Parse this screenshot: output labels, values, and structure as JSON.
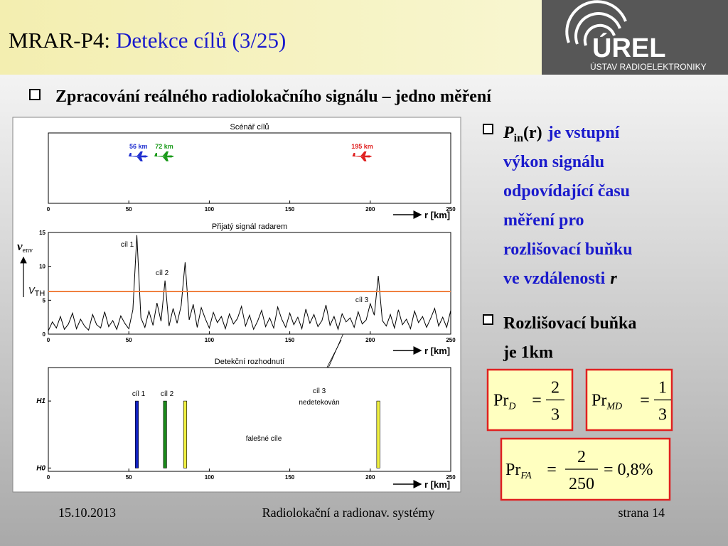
{
  "header": {
    "title_prefix": "MRAR-P4:",
    "title": "Detekce cílů (3/25)",
    "logo": "ÚREL",
    "logo_sub": "ÚSTAV RADIOELEKTRONIKY"
  },
  "heading": "Zpracování reálného radiolokačního signálu – jedno měření",
  "chart_data": [
    {
      "type": "markers",
      "title": "Scénář cílů",
      "x": [
        56,
        72,
        195
      ],
      "labels": [
        "56 km",
        "72 km",
        "195 km"
      ],
      "colors": [
        "#1f2fd0",
        "#1a9a1a",
        "#e02020"
      ],
      "xlim": [
        0,
        250
      ],
      "xticks": [
        0,
        50,
        100,
        150,
        200,
        250
      ],
      "xlabel": "r [km]"
    },
    {
      "type": "line",
      "title": "Přijatý signál radarem",
      "color": "#000000",
      "x": [
        0,
        2.5,
        5,
        7.5,
        10,
        12.5,
        15,
        17.5,
        20,
        22.5,
        25,
        27.5,
        30,
        32.5,
        35,
        37.5,
        40,
        42.5,
        45,
        47.5,
        50,
        52.5,
        55,
        57.5,
        60,
        62.5,
        65,
        67.5,
        70,
        72.5,
        75,
        77.5,
        80,
        82.5,
        85,
        87.5,
        90,
        92.5,
        95,
        97.5,
        100,
        102.5,
        105,
        107.5,
        110,
        112.5,
        115,
        117.5,
        120,
        122.5,
        125,
        127.5,
        130,
        132.5,
        135,
        137.5,
        140,
        142.5,
        145,
        147.5,
        150,
        152.5,
        155,
        157.5,
        160,
        162.5,
        165,
        167.5,
        170,
        172.5,
        175,
        177.5,
        180,
        182.5,
        185,
        187.5,
        190,
        192.5,
        195,
        197.5,
        200,
        202.5,
        205,
        207.5,
        210,
        212.5,
        215,
        217.5,
        220,
        222.5,
        225,
        227.5,
        230,
        232.5,
        235,
        237.5,
        240,
        242.5,
        245,
        247.5,
        250
      ],
      "values": [
        0.5,
        1.8,
        0.9,
        2.6,
        0.7,
        1.5,
        3.1,
        0.8,
        2.2,
        1.2,
        0.6,
        2.9,
        1.4,
        0.9,
        3.3,
        1.1,
        2.0,
        0.7,
        2.7,
        1.6,
        0.8,
        3.6,
        14.6,
        2.4,
        1.0,
        3.4,
        1.3,
        4.6,
        1.9,
        7.9,
        1.2,
        3.8,
        1.6,
        4.2,
        10.6,
        2.1,
        4.4,
        1.0,
        3.9,
        2.3,
        0.9,
        3.2,
        1.7,
        2.6,
        0.8,
        3.0,
        1.5,
        2.3,
        4.1,
        1.2,
        2.8,
        0.7,
        1.9,
        3.5,
        1.1,
        2.4,
        0.9,
        4.0,
        2.2,
        1.0,
        3.1,
        1.4,
        2.5,
        0.8,
        3.7,
        1.6,
        2.9,
        1.1,
        2.0,
        4.3,
        1.3,
        2.6,
        0.7,
        3.0,
        1.8,
        2.4,
        1.0,
        3.3,
        1.5,
        2.1,
        4.5,
        2.8,
        8.6,
        2.0,
        1.2,
        2.9,
        0.9,
        3.6,
        1.4,
        2.2,
        0.8,
        3.4,
        1.7,
        2.6,
        1.0,
        2.3,
        3.8,
        1.2,
        2.5,
        1.0,
        3.5
      ],
      "xlim": [
        0,
        250
      ],
      "xticks": [
        0,
        50,
        100,
        150,
        200,
        250
      ],
      "xlabel": "r [km]",
      "ylim": [
        0,
        15
      ],
      "yticks": [
        0,
        5,
        10,
        15
      ],
      "ylabel": "ν",
      "ylabel_sub": "env",
      "threshold": {
        "value": 6.3,
        "color": "#f08040",
        "label": "V",
        "label_sub": "TH"
      },
      "annotations": [
        "cíl 1",
        "cíl 2",
        "cíl 3"
      ]
    },
    {
      "type": "bar",
      "title": "Detekční rozhodnutí",
      "x": [
        55,
        72.5,
        85,
        205
      ],
      "values": [
        1,
        1,
        1,
        1
      ],
      "colors": [
        "#1020c0",
        "#1a8a1a",
        "#f0f040",
        "#f0f040"
      ],
      "xlim": [
        0,
        250
      ],
      "xticks": [
        0,
        50,
        100,
        150,
        200,
        250
      ],
      "xlabel": "r [km]",
      "ylim": [
        -0.05,
        1.5
      ],
      "yticks": [
        {
          "value": 0,
          "label": "H0"
        },
        {
          "value": 1,
          "label": "H1"
        }
      ],
      "annotations": [
        "cíl 1",
        "cíl 2",
        "cíl 3",
        "nedetekován",
        "falešné cíle"
      ]
    }
  ],
  "bullets": [
    {
      "symbol": "P",
      "symbol_sub": "in",
      "symbol_arg": "(r)",
      "lines": [
        "je vstupní",
        "výkon signálu",
        "odpovídající času",
        "měření pro",
        "rozlišovací buňku",
        "ve vzdálenosti"
      ],
      "variable": "r"
    },
    {
      "lines": [
        "Rozlišovací buňka",
        "je 1km"
      ]
    }
  ],
  "formulas": [
    {
      "name": "Pr",
      "sub": "D",
      "eq": "=",
      "num": 2,
      "den": 3
    },
    {
      "name": "Pr",
      "sub": "MD",
      "eq": "=",
      "num": 1,
      "den": 3
    },
    {
      "name": "Pr",
      "sub": "FA",
      "eq": "=",
      "num": 2,
      "den": 250,
      "result": "= 0,8%"
    }
  ],
  "footer": {
    "date": "15.10.2013",
    "course": "Radiolokační a radionav. systémy",
    "page": "strana 14"
  }
}
